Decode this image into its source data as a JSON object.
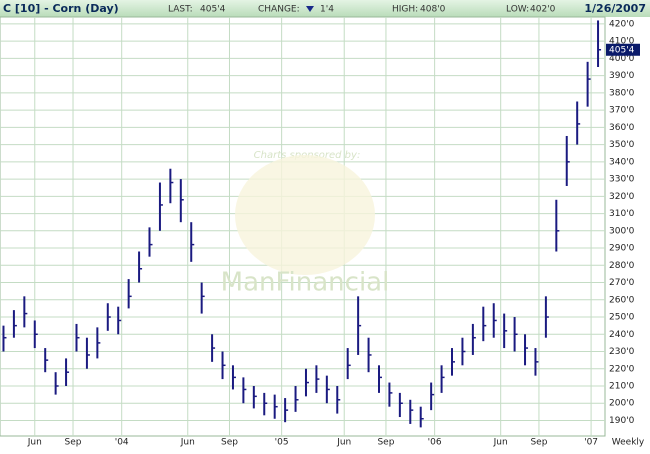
{
  "header": {
    "symbol": "C [10] - Corn (Day)",
    "last_label": "LAST:",
    "last": "405'4",
    "change_label": "CHANGE:",
    "change": "1'4",
    "high_label": "HIGH:",
    "high": "408'0",
    "low_label": "LOW:",
    "low": "402'0",
    "date": "1/26/2007"
  },
  "watermark": {
    "note": "Charts sponsored by:",
    "sponsor": "ManFinancial"
  },
  "chart_data": {
    "type": "ohlc",
    "color": "#1a1a80",
    "grid": true,
    "x": [
      0,
      3,
      6,
      9,
      12,
      15,
      18,
      21,
      24,
      27,
      30,
      33,
      36,
      39,
      42,
      45,
      48,
      51,
      54,
      57,
      60,
      63,
      66,
      69,
      72,
      75,
      78,
      81,
      84,
      87,
      90,
      93,
      96,
      99,
      102,
      105,
      108,
      111,
      114,
      117,
      120,
      123,
      126,
      129,
      132,
      135,
      138,
      141,
      144,
      147,
      150,
      153,
      156,
      159,
      162,
      165,
      168,
      171
    ],
    "high": [
      245,
      254,
      262,
      248,
      232,
      218,
      226,
      246,
      238,
      244,
      258,
      256,
      272,
      288,
      302,
      328,
      336,
      330,
      305,
      270,
      240,
      230,
      222,
      215,
      210,
      206,
      205,
      203,
      210,
      220,
      222,
      216,
      210,
      232,
      262,
      238,
      222,
      212,
      206,
      202,
      198,
      212,
      222,
      232,
      238,
      246,
      256,
      258,
      252,
      250,
      240,
      232,
      262,
      318,
      355,
      375,
      398,
      422
    ],
    "low": [
      230,
      238,
      244,
      232,
      218,
      205,
      210,
      230,
      220,
      226,
      242,
      240,
      255,
      270,
      285,
      300,
      316,
      305,
      282,
      252,
      224,
      214,
      208,
      200,
      197,
      193,
      191,
      189,
      195,
      204,
      206,
      200,
      194,
      214,
      228,
      218,
      206,
      198,
      192,
      188,
      186,
      196,
      206,
      216,
      222,
      228,
      236,
      238,
      232,
      230,
      222,
      216,
      238,
      288,
      326,
      350,
      372,
      395
    ],
    "close": [
      238,
      245,
      252,
      240,
      225,
      210,
      218,
      238,
      228,
      235,
      250,
      248,
      262,
      278,
      292,
      315,
      328,
      318,
      292,
      262,
      232,
      222,
      215,
      208,
      204,
      200,
      198,
      196,
      202,
      212,
      214,
      208,
      202,
      222,
      245,
      228,
      215,
      206,
      200,
      196,
      191,
      205,
      215,
      224,
      230,
      238,
      245,
      248,
      242,
      240,
      232,
      224,
      250,
      300,
      340,
      362,
      388,
      405
    ],
    "xlim": [
      -1,
      173
    ],
    "xticks": [
      {
        "value": 9,
        "label": "Jun"
      },
      {
        "value": 20,
        "label": "Sep"
      },
      {
        "value": 34,
        "label": "'04"
      },
      {
        "value": 53,
        "label": "Jun"
      },
      {
        "value": 65,
        "label": "Sep"
      },
      {
        "value": 80,
        "label": "'05"
      },
      {
        "value": 98,
        "label": "Jun"
      },
      {
        "value": 110,
        "label": "Sep"
      },
      {
        "value": 124,
        "label": "'06"
      },
      {
        "value": 143,
        "label": "Jun"
      },
      {
        "value": 154,
        "label": "Sep"
      },
      {
        "value": 169,
        "label": "'07"
      }
    ],
    "x_period": "Weekly",
    "ylim": [
      181,
      424
    ],
    "yticks": [
      {
        "value": 190,
        "label": "190'0"
      },
      {
        "value": 200,
        "label": "200'0"
      },
      {
        "value": 210,
        "label": "210'0"
      },
      {
        "value": 220,
        "label": "220'0"
      },
      {
        "value": 230,
        "label": "230'0"
      },
      {
        "value": 240,
        "label": "240'0"
      },
      {
        "value": 250,
        "label": "250'0"
      },
      {
        "value": 260,
        "label": "260'0"
      },
      {
        "value": 270,
        "label": "270'0"
      },
      {
        "value": 280,
        "label": "280'0"
      },
      {
        "value": 290,
        "label": "290'0"
      },
      {
        "value": 300,
        "label": "300'0"
      },
      {
        "value": 310,
        "label": "310'0"
      },
      {
        "value": 320,
        "label": "320'0"
      },
      {
        "value": 330,
        "label": "330'0"
      },
      {
        "value": 340,
        "label": "340'0"
      },
      {
        "value": 350,
        "label": "350'0"
      },
      {
        "value": 360,
        "label": "360'0"
      },
      {
        "value": 370,
        "label": "370'0"
      },
      {
        "value": 380,
        "label": "380'0"
      },
      {
        "value": 390,
        "label": "390'0"
      },
      {
        "value": 400,
        "label": "400'0"
      },
      {
        "value": 410,
        "label": "410'0"
      },
      {
        "value": 420,
        "label": "420'0"
      }
    ]
  }
}
